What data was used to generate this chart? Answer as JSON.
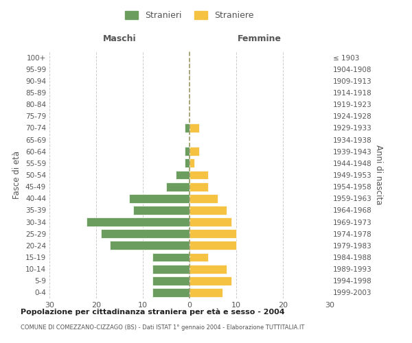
{
  "age_groups": [
    "0-4",
    "5-9",
    "10-14",
    "15-19",
    "20-24",
    "25-29",
    "30-34",
    "35-39",
    "40-44",
    "45-49",
    "50-54",
    "55-59",
    "60-64",
    "65-69",
    "70-74",
    "75-79",
    "80-84",
    "85-89",
    "90-94",
    "95-99",
    "100+"
  ],
  "birth_years": [
    "1999-2003",
    "1994-1998",
    "1989-1993",
    "1984-1988",
    "1979-1983",
    "1974-1978",
    "1969-1973",
    "1964-1968",
    "1959-1963",
    "1954-1958",
    "1949-1953",
    "1944-1948",
    "1939-1943",
    "1934-1938",
    "1929-1933",
    "1924-1928",
    "1919-1923",
    "1914-1918",
    "1909-1913",
    "1904-1908",
    "≤ 1903"
  ],
  "maschi": [
    8,
    8,
    8,
    8,
    17,
    19,
    22,
    12,
    13,
    5,
    3,
    1,
    1,
    0,
    1,
    0,
    0,
    0,
    0,
    0,
    0
  ],
  "femmine": [
    7,
    9,
    8,
    4,
    10,
    10,
    9,
    8,
    6,
    4,
    4,
    1,
    2,
    0,
    2,
    0,
    0,
    0,
    0,
    0,
    0
  ],
  "color_maschi": "#6b9e5e",
  "color_femmine": "#f5c242",
  "xlim": [
    -30,
    30
  ],
  "xticks": [
    -30,
    -20,
    -10,
    0,
    10,
    20,
    30
  ],
  "xticklabels": [
    "30",
    "20",
    "10",
    "0",
    "10",
    "20",
    "30"
  ],
  "title_main": "Popolazione per cittadinanza straniera per età e sesso - 2004",
  "title_sub": "COMUNE DI COMEZZANO-CIZZAGO (BS) - Dati ISTAT 1° gennaio 2004 - Elaborazione TUTTITALIA.IT",
  "ylabel_left": "Fasce di età",
  "ylabel_right": "Anni di nascita",
  "label_maschi": "Stranieri",
  "label_femmine": "Straniere",
  "header_left": "Maschi",
  "header_right": "Femmine",
  "background_color": "#ffffff",
  "grid_color": "#cccccc"
}
